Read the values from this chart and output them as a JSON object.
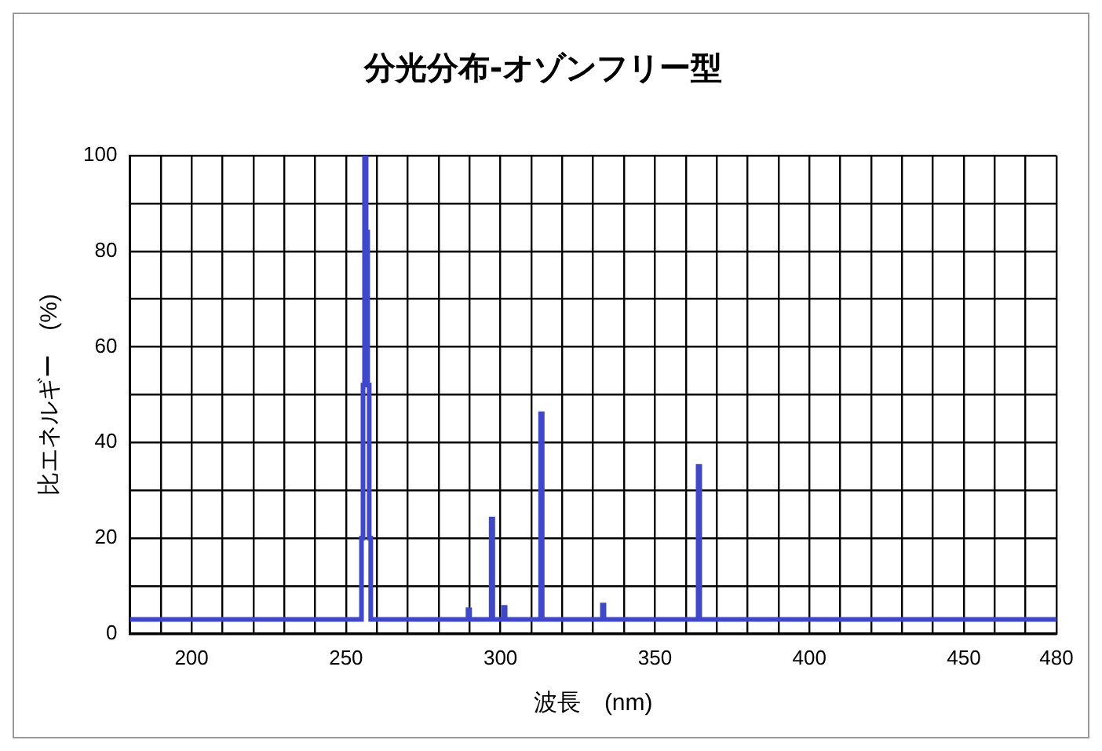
{
  "chart_data": {
    "type": "line",
    "title": "分光分布-オゾンフリー型",
    "xlabel": "波長　(nm)",
    "ylabel": "比エネルギー　(%)",
    "x": [
      180,
      255,
      255,
      255.5,
      255.5,
      256,
      256,
      256.5,
      256.5,
      257,
      257,
      257.5,
      257.5,
      258,
      258,
      289.5,
      289.5,
      290,
      290,
      297,
      297,
      297.5,
      297.5,
      301,
      301,
      301.5,
      301.5,
      313,
      313,
      313.5,
      313.5,
      333,
      333,
      333.5,
      333.5,
      364,
      364,
      364.5,
      364.5,
      480
    ],
    "values": [
      3,
      3,
      20,
      20,
      52,
      52,
      100,
      100,
      84,
      84,
      52,
      52,
      20,
      20,
      3,
      3,
      5,
      5,
      3,
      3,
      24,
      24,
      3,
      3,
      5.5,
      5.5,
      3,
      3,
      46,
      46,
      3,
      3,
      6,
      6,
      3,
      3,
      35,
      35,
      3,
      3
    ],
    "color": "#3f48cc",
    "xlim": [
      180,
      480
    ],
    "xticks": [
      {
        "value": 180,
        "label": null
      },
      {
        "value": 190,
        "label": null
      },
      200,
      {
        "value": 210,
        "label": null
      },
      {
        "value": 220,
        "label": null
      },
      {
        "value": 230,
        "label": null
      },
      {
        "value": 240,
        "label": null
      },
      250,
      {
        "value": 260,
        "label": null
      },
      {
        "value": 270,
        "label": null
      },
      {
        "value": 280,
        "label": null
      },
      {
        "value": 290,
        "label": null
      },
      300,
      {
        "value": 310,
        "label": null
      },
      {
        "value": 320,
        "label": null
      },
      {
        "value": 330,
        "label": null
      },
      {
        "value": 340,
        "label": null
      },
      350,
      {
        "value": 360,
        "label": null
      },
      {
        "value": 370,
        "label": null
      },
      {
        "value": 380,
        "label": null
      },
      {
        "value": 390,
        "label": null
      },
      400,
      {
        "value": 410,
        "label": null
      },
      {
        "value": 420,
        "label": null
      },
      {
        "value": 430,
        "label": null
      },
      {
        "value": 440,
        "label": null
      },
      450,
      {
        "value": 460,
        "label": null
      },
      {
        "value": 470,
        "label": null
      },
      480
    ],
    "ylim": [
      0,
      100
    ],
    "yticks": [
      0,
      {
        "value": 10,
        "label": null
      },
      20,
      {
        "value": 30,
        "label": null
      },
      40,
      {
        "value": 50,
        "label": null
      },
      60,
      {
        "value": 70,
        "label": null
      },
      80,
      {
        "value": 90,
        "label": null
      },
      100
    ],
    "grid": true
  }
}
